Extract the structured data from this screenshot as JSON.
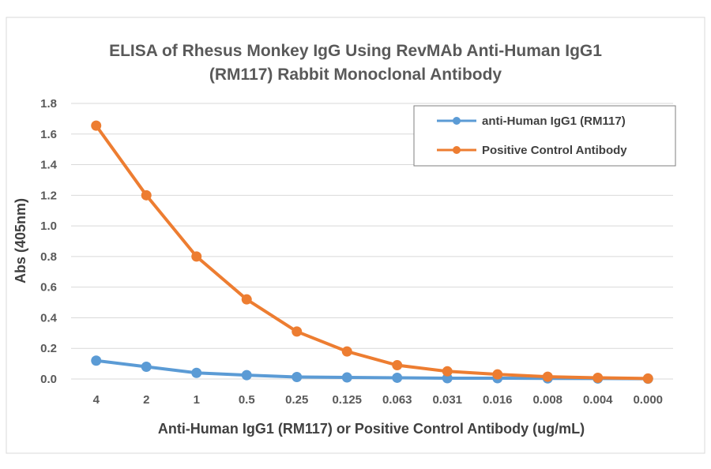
{
  "chart_data": {
    "type": "line",
    "title": [
      "ELISA of Rhesus Monkey IgG Using RevMAb Anti-Human IgG1",
      "(RM117) Rabbit Monoclonal Antibody"
    ],
    "xlabel": "Anti-Human IgG1 (RM117) or Positive Control Antibody (ug/mL)",
    "ylabel": "Abs (405nm)",
    "categories": [
      "4",
      "2",
      "1",
      "0.5",
      "0.25",
      "0.125",
      "0.063",
      "0.031",
      "0.016",
      "0.008",
      "0.004",
      "0.000"
    ],
    "ylim": [
      0,
      1.8
    ],
    "yticks": [
      "0.0",
      "0.2",
      "0.4",
      "0.6",
      "0.8",
      "1.0",
      "1.2",
      "1.4",
      "1.6",
      "1.8"
    ],
    "grid": "horizontal",
    "legend_placement": "top-right",
    "series": [
      {
        "name": "anti-Human IgG1 (RM117)",
        "color": "#5B9BD5",
        "values": [
          0.12,
          0.08,
          0.04,
          0.025,
          0.013,
          0.01,
          0.008,
          0.005,
          0.005,
          0.004,
          0.003,
          0.002
        ]
      },
      {
        "name": "Positive Control Antibody",
        "color": "#ED7D31",
        "values": [
          1.655,
          1.2,
          0.8,
          0.52,
          0.31,
          0.18,
          0.09,
          0.05,
          0.03,
          0.015,
          0.008,
          0.003
        ]
      }
    ]
  }
}
